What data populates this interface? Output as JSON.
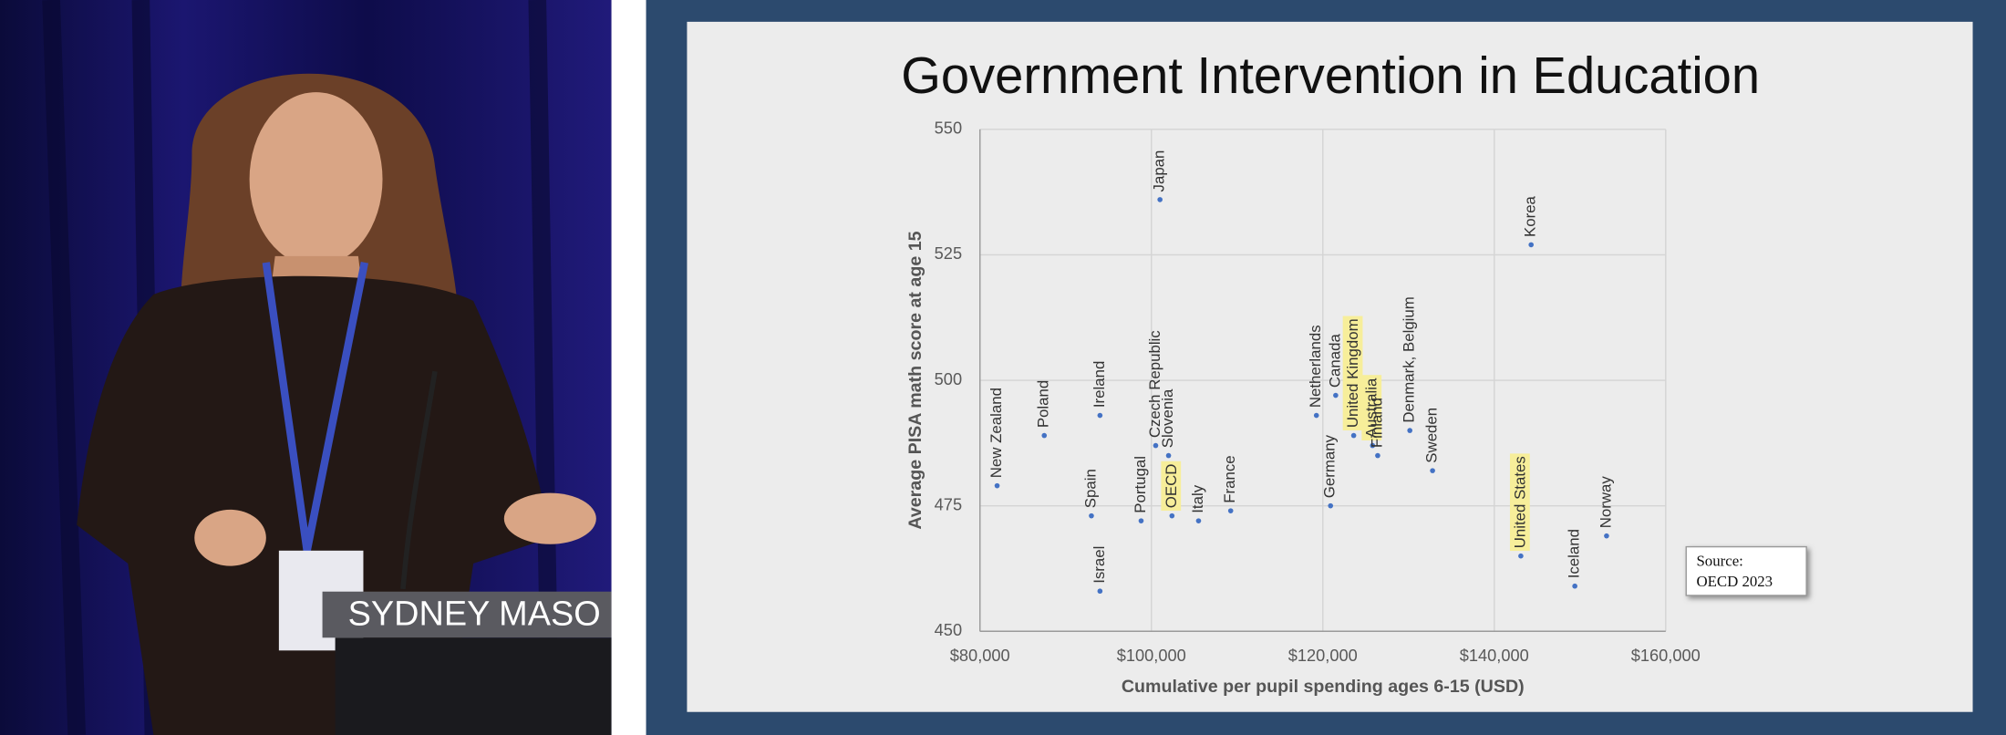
{
  "photo": {
    "podium_text": "SYDNEY MASO"
  },
  "chart_data": {
    "type": "scatter",
    "title": "Government Intervention in Education",
    "x_label": "Cumulative per pupil spending ages 6-15 (USD)",
    "y_label": "Average PISA math score at age 15",
    "labels": [
      "New Zealand",
      "Poland",
      "Spain",
      "Ireland",
      "Israel",
      "Portugal",
      "Czech Republic",
      "Slovenia",
      "Japan",
      "OECD",
      "Italy",
      "France",
      "Netherlands",
      "Canada",
      "Germany",
      "United Kingdom",
      "Australia",
      "Finland",
      "Denmark, Belgium",
      "Sweden",
      "Korea",
      "United States",
      "Iceland",
      "Norway"
    ],
    "x": [
      82000,
      87500,
      93000,
      94000,
      94000,
      98800,
      100500,
      102000,
      101000,
      102400,
      105500,
      109250,
      119250,
      121500,
      120900,
      123600,
      125800,
      126400,
      130150,
      132800,
      144300,
      143100,
      149400,
      153100
    ],
    "values": [
      479,
      489,
      473,
      493,
      458,
      472,
      487,
      485,
      536,
      473,
      472,
      474,
      493,
      497,
      475,
      489,
      487,
      485,
      490,
      482,
      527,
      465,
      459,
      469
    ],
    "highlighted": [
      false,
      false,
      false,
      false,
      false,
      false,
      false,
      false,
      false,
      true,
      false,
      false,
      false,
      false,
      false,
      true,
      true,
      false,
      false,
      false,
      false,
      true,
      false,
      false
    ],
    "color": "#4472c4",
    "highlight_color": "#f7ee9a",
    "xlim": [
      80000,
      160000
    ],
    "ylim": [
      450,
      550
    ],
    "xticks": [
      {
        "value": 80000,
        "label": "$80,000"
      },
      {
        "value": 100000,
        "label": "$100,000"
      },
      {
        "value": 120000,
        "label": "$120,000"
      },
      {
        "value": 140000,
        "label": "$140,000"
      },
      {
        "value": 160000,
        "label": "$160,000"
      }
    ],
    "yticks": [
      450,
      475,
      500,
      525,
      550
    ],
    "grid": true,
    "source_note": [
      "Source:",
      "OECD 2023"
    ]
  }
}
